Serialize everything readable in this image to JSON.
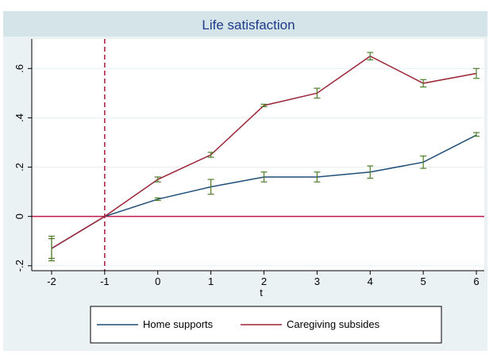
{
  "chart_data": {
    "type": "line",
    "title": "Life satisfaction",
    "xlabel": "t",
    "ylabel": "",
    "xlim": [
      -2,
      6
    ],
    "ylim": [
      -0.22,
      0.72
    ],
    "x": [
      -2,
      -1,
      0,
      1,
      2,
      3,
      4,
      5,
      6
    ],
    "x_tick_labels": [
      "-2",
      "-1",
      "0",
      "1",
      "2",
      "3",
      "4",
      "5",
      "6"
    ],
    "y_ticks": [
      -0.2,
      0,
      0.2,
      0.4,
      0.6
    ],
    "y_tick_labels": [
      "-.2",
      "0",
      ".2",
      ".4",
      ".6"
    ],
    "grid": "horizontal",
    "reference_lines": {
      "vertical_x": -1,
      "horizontal_y": 0
    },
    "legend_position": "bottom",
    "series": [
      {
        "name": "Home supports",
        "color": "#1f4e79",
        "values": [
          -0.13,
          0,
          0.07,
          0.12,
          0.16,
          0.16,
          0.18,
          0.22,
          0.33
        ],
        "err_low": [
          -0.17,
          null,
          0.065,
          0.09,
          0.14,
          0.14,
          0.155,
          0.195,
          0.325
        ],
        "err_high": [
          -0.09,
          null,
          0.075,
          0.15,
          0.18,
          0.18,
          0.205,
          0.245,
          0.34
        ]
      },
      {
        "name": "Caregiving subsides",
        "color": "#9b2335",
        "values": [
          -0.13,
          0,
          0.15,
          0.25,
          0.45,
          0.5,
          0.65,
          0.54,
          0.58
        ],
        "err_low": [
          -0.18,
          null,
          0.14,
          0.24,
          0.445,
          0.48,
          0.635,
          0.525,
          0.56
        ],
        "err_high": [
          -0.08,
          null,
          0.16,
          0.26,
          0.455,
          0.52,
          0.665,
          0.555,
          0.6
        ]
      }
    ],
    "errorbar_color": "#4e7d2a",
    "colors": {
      "background": "#eaf2f3",
      "title_bar": "#d5e4e8",
      "plot_area": "#ffffff",
      "gridline": "#e6eef2",
      "zero_line": "#c0184a",
      "vline": "#a8183a"
    }
  }
}
